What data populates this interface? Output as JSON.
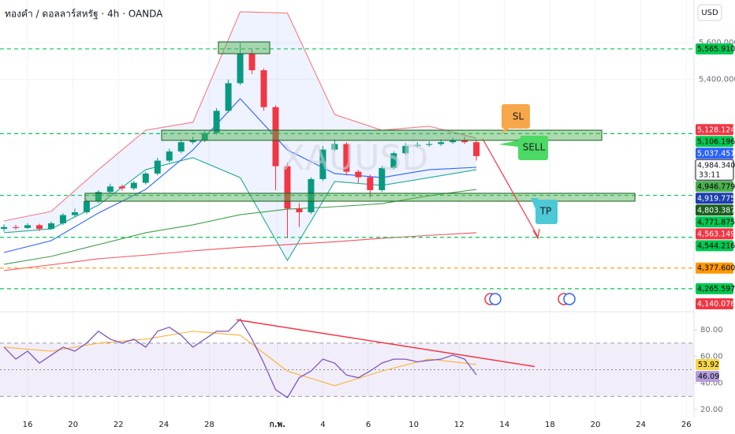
{
  "chart_data": [
    {
      "type": "candlestick",
      "title": "ทองคำ / ดอลลาร์สหรัฐ · 4h · OANDA",
      "currency": "USD",
      "watermark": "XAUUSD",
      "xlim": [
        -1.215,
        29.34
      ],
      "ylim": [
        4141,
        5831
      ],
      "yticks": [
        {
          "value": 5600,
          "label": "5,600.000"
        },
        {
          "value": 5400,
          "label": "5,400.000"
        }
      ],
      "x": [
        -1.04,
        -0.52,
        0,
        0.52,
        1.04,
        1.56,
        2.08,
        2.6,
        3.12,
        3.64,
        4.16,
        4.68,
        5.2,
        5.72,
        6.24,
        6.76,
        7.28,
        7.8,
        8.32,
        8.84,
        9.36,
        9.88,
        10.4,
        10.92,
        11.44,
        11.96,
        12.48,
        13,
        13.52,
        14.04,
        14.56,
        15.08,
        15.6,
        16.12,
        16.64,
        17.16,
        17.68,
        18.2,
        18.72,
        19.24,
        19.76
      ],
      "open": [
        4590,
        4600,
        4595,
        4610,
        4590,
        4620,
        4665,
        4680,
        4740,
        4790,
        4820,
        4810,
        4840,
        4890,
        4960,
        5010,
        5060,
        5070,
        5110,
        5230,
        5380,
        5540,
        5450,
        5250,
        4930,
        4700,
        4680,
        4860,
        5020,
        5050,
        4900,
        4870,
        4800,
        4920,
        5000,
        5040,
        5045,
        5050,
        5060,
        5070,
        5060
      ],
      "high": [
        4615,
        4612,
        4620,
        4618,
        4630,
        4675,
        4700,
        4750,
        4800,
        4835,
        4830,
        4850,
        4900,
        4975,
        5025,
        5075,
        5090,
        5120,
        5245,
        5400,
        5598,
        5560,
        5460,
        5260,
        4950,
        4730,
        4870,
        5040,
        5075,
        5060,
        4910,
        4885,
        4930,
        5010,
        5055,
        5060,
        5065,
        5075,
        5085,
        5090,
        5070
      ],
      "low": [
        4575,
        4585,
        4590,
        4578,
        4585,
        4610,
        4655,
        4670,
        4730,
        4780,
        4795,
        4800,
        4830,
        4880,
        4950,
        5000,
        5050,
        5060,
        5100,
        5220,
        5370,
        5430,
        5230,
        4800,
        4540,
        4600,
        4670,
        4850,
        5010,
        4880,
        4840,
        4760,
        4790,
        4910,
        4990,
        5030,
        5035,
        5040,
        5050,
        5050,
        4960
      ],
      "close": [
        4600,
        4595,
        4610,
        4590,
        4620,
        4665,
        4680,
        4740,
        4790,
        4820,
        4810,
        4840,
        4890,
        4960,
        5010,
        5060,
        5070,
        5110,
        5230,
        5380,
        5540,
        5450,
        5250,
        4930,
        4700,
        4680,
        4860,
        5020,
        5050,
        4900,
        4870,
        4800,
        4920,
        5000,
        5040,
        5045,
        5050,
        5060,
        5070,
        5060,
        4984.34
      ],
      "up_color": "#089981",
      "down_color": "#f23645",
      "overlays": [
        {
          "color": "#f77c80",
          "fill": "#2962ff",
          "x": [
            -1.04,
            1.04,
            3.12,
            5.2,
            7.28,
            9.36,
            11.44,
            13.52,
            15.6,
            17.68,
            19.76
          ],
          "values": [
            4633,
            4685,
            4911,
            5125,
            5168,
            5767,
            5760,
            5210,
            5125,
            5147,
            5082
          ]
        },
        {
          "color": "#22ab94",
          "x": [
            -1.04,
            1.04,
            3.12,
            5.2,
            7.28,
            9.36,
            11.44,
            13.52,
            15.6,
            17.68,
            19.76
          ],
          "values": [
            4569,
            4590,
            4719,
            4911,
            4976,
            4868,
            4419,
            4847,
            4826,
            4868,
            4911
          ]
        },
        {
          "color": "#2962ff",
          "x": [
            -1.04,
            1.04,
            3.12,
            5.2,
            7.28,
            9.36,
            11.44,
            13.52,
            15.6,
            17.68,
            19.76
          ],
          "values": [
            4462,
            4526,
            4676,
            4804,
            5018,
            5296,
            5018,
            4890,
            4868,
            4911,
            4924
          ]
        },
        {
          "color": "#43a047",
          "x": [
            -1.04,
            1.04,
            3.12,
            5.2,
            7.28,
            9.36,
            11.44,
            13.52,
            15.6,
            17.68,
            19.76
          ],
          "values": [
            4398,
            4441,
            4505,
            4569,
            4612,
            4667,
            4697,
            4710,
            4727,
            4770,
            4804
          ]
        },
        {
          "color": "#f7525f",
          "x": [
            -1.04,
            1.04,
            3.12,
            5.2,
            7.28,
            9.36,
            11.44,
            13.52,
            15.6,
            17.68,
            19.76
          ],
          "values": [
            4364,
            4395,
            4428,
            4448,
            4471,
            4490,
            4505,
            4520,
            4539,
            4555,
            4569
          ]
        }
      ],
      "zones": [
        {
          "color": "#4caf50",
          "x": [
            8.4,
            10.66
          ],
          "y": [
            5540,
            5604
          ]
        },
        {
          "color": "#4caf50",
          "x": [
            5.9,
            25.28
          ],
          "y": [
            5070,
            5125
          ]
        },
        {
          "color": "#4caf50",
          "x": [
            2.53,
            26.74
          ],
          "y": [
            4740,
            4783
          ]
        }
      ],
      "price_tags": [
        {
          "value": 5565.91,
          "label": "5,565.910",
          "color": "#00c853",
          "text_color": "#000000",
          "dashed": true
        },
        {
          "value": 5128.124,
          "label": "5,128.124",
          "color": "#f23645",
          "text_color": "#ffffff"
        },
        {
          "value": 5106.196,
          "label": "5,106.196",
          "color": "#00c853",
          "text_color": "#000000",
          "dashed": true
        },
        {
          "value": 5037.451,
          "label": "5,037.451",
          "color": "#2962ff",
          "text_color": "#ffffff"
        },
        {
          "value": 4984.34,
          "label": "4,984.340",
          "sublabel": "33:11",
          "color": "#ffffff",
          "text_color": "#131722"
        },
        {
          "value": 4946.779,
          "label": "4,946.779",
          "color": "#4caf50",
          "text_color": "#000000"
        },
        {
          "value": 4919.775,
          "label": "4,919.775",
          "color": "#1e40af",
          "text_color": "#ffffff"
        },
        {
          "value": 4803.387,
          "label": "4,803.387",
          "color": "#1b5e20",
          "text_color": "#ffffff"
        },
        {
          "value": 4771.875,
          "label": "4,771.875",
          "color": "#00c853",
          "text_color": "#000000",
          "dashed": true
        },
        {
          "value": 4563.149,
          "label": "4,563.149",
          "color": "#f23645",
          "text_color": "#ffffff"
        },
        {
          "value": 4544.216,
          "label": "4,544.216",
          "color": "#00c853",
          "text_color": "#000000",
          "dashed": true
        },
        {
          "value": 4377.6,
          "label": "4,377.600",
          "color": "#ff9800",
          "text_color": "#000000",
          "dashed": true
        },
        {
          "value": 4265.597,
          "label": "4,265.597",
          "color": "#00c853",
          "text_color": "#000000",
          "dashed": true
        },
        {
          "value": 4140.076,
          "label": "4,140.076",
          "color": "#f23645",
          "text_color": "#ffffff"
        }
      ],
      "annotations": [
        {
          "text": "SL",
          "color": "#f7a74a"
        },
        {
          "text": "SELL",
          "color": "#4cd964"
        },
        {
          "text": "TP",
          "color": "#4dc9d6"
        }
      ]
    },
    {
      "type": "line",
      "xlim": [
        -1.215,
        29.34
      ],
      "ylim": [
        13.5,
        93.7
      ],
      "yticks": [
        {
          "value": 80,
          "label": "80.00"
        },
        {
          "value": 60,
          "label": "60.00"
        },
        {
          "value": 40,
          "label": "40.00"
        },
        {
          "value": 20,
          "label": "20.00"
        }
      ],
      "xticks": [
        {
          "value": 0,
          "label": "16"
        },
        {
          "value": 2,
          "label": "20"
        },
        {
          "value": 4,
          "label": "22"
        },
        {
          "value": 6,
          "label": "24"
        },
        {
          "value": 8,
          "label": "28"
        },
        {
          "value": 11,
          "label": "ก.พ."
        },
        {
          "value": 13,
          "label": "4"
        },
        {
          "value": 15,
          "label": "6"
        },
        {
          "value": 17,
          "label": "10"
        },
        {
          "value": 19,
          "label": "12"
        },
        {
          "value": 21,
          "label": "14"
        },
        {
          "value": 23,
          "label": "18"
        },
        {
          "value": 25,
          "label": "20"
        },
        {
          "value": 27,
          "label": "24"
        },
        {
          "value": 29,
          "label": "26"
        }
      ],
      "band": [
        30,
        70
      ],
      "midline": 50,
      "band_color": "#7e57c2",
      "x": [
        -1.04,
        -0.52,
        0,
        0.52,
        1.04,
        1.56,
        2.08,
        2.6,
        3.12,
        3.64,
        4.16,
        4.68,
        5.2,
        5.72,
        6.24,
        6.76,
        7.28,
        7.8,
        8.32,
        8.84,
        9.36,
        9.88,
        10.4,
        10.92,
        11.44,
        11.96,
        12.48,
        13,
        13.52,
        14.04,
        14.56,
        15.08,
        15.6,
        16.12,
        16.64,
        17.16,
        17.68,
        18.2,
        18.72,
        19.24,
        19.76
      ],
      "series": [
        {
          "color": "#7e57c2",
          "values": [
            67,
            58,
            64,
            55,
            61,
            67,
            64,
            70,
            79,
            73,
            70,
            73,
            67,
            79,
            82,
            76,
            67,
            73,
            79,
            79,
            88,
            73,
            55,
            35,
            29,
            44,
            49,
            58,
            55,
            46,
            44,
            49,
            55,
            58,
            58,
            56,
            57,
            58,
            61,
            58,
            46.09
          ]
        }
      ],
      "overlays": [
        {
          "color": "#f9b233",
          "x": [
            -1.04,
            1.04,
            3.12,
            5.2,
            7.28,
            9.36,
            11.44,
            13.52,
            15.6,
            17.68,
            19.76
          ],
          "values": [
            67,
            64,
            70,
            73,
            79,
            76,
            49,
            38,
            49,
            58,
            53.92
          ]
        }
      ],
      "trendline": {
        "color": "#f23645",
        "x": [
          9.2,
          22.33
        ],
        "y": [
          87.6,
          52.4
        ]
      },
      "tags": [
        {
          "value": 53.92,
          "label": "53.92",
          "color": "#f9d648",
          "text_color": "#000000"
        },
        {
          "value": 46.09,
          "label": "46.09",
          "color": "#b39ddb",
          "text_color": "#000000"
        }
      ]
    }
  ]
}
